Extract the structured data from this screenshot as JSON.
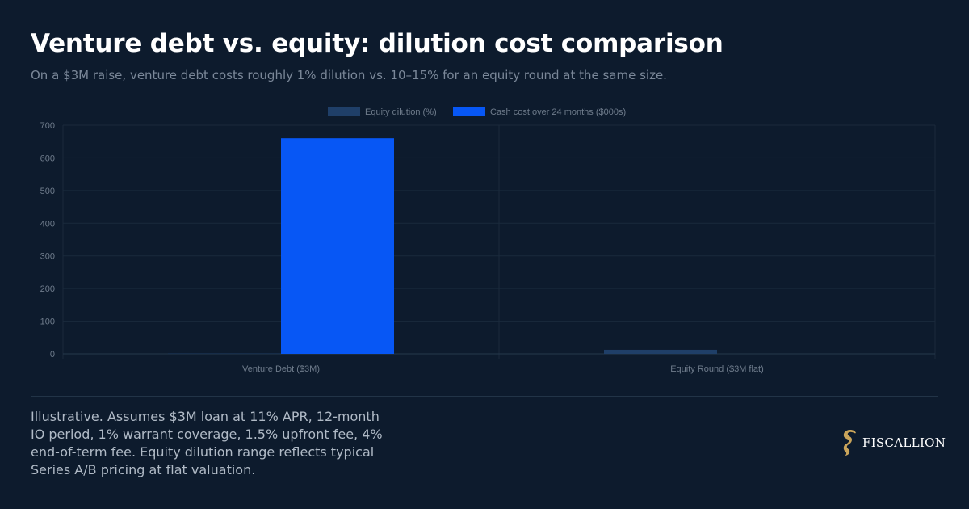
{
  "header": {
    "title": "Venture debt vs. equity: dilution cost comparison",
    "subtitle": "On a $3M raise, venture debt costs roughly 1% dilution vs. 10–15% for an equity round at the same size."
  },
  "chart_data": {
    "type": "bar",
    "categories": [
      "Venture Debt ($3M)",
      "Equity Round ($3M flat)"
    ],
    "series": [
      {
        "name": "Equity dilution (%)",
        "values": [
          1,
          12.5
        ],
        "color": "#1f3f68"
      },
      {
        "name": "Cash cost over 24 months ($000s)",
        "values": [
          660,
          0
        ],
        "color": "#0757f5"
      }
    ],
    "ylim": [
      0,
      700
    ],
    "yticks": [
      0,
      100,
      200,
      300,
      400,
      500,
      600,
      700
    ],
    "legend": "top-center",
    "grid": true
  },
  "footnote": "Illustrative. Assumes $3M loan at 11% APR, 12-month IO period, 1% warrant coverage, 1.5% upfront fee, 4% end-of-term fee. Equity dilution range reflects typical Series A/B pricing at flat valuation.",
  "brand": {
    "name": "FISCALLION",
    "logo_icon": "seahorse-logo-icon",
    "logo_color": "#c9a45a"
  }
}
